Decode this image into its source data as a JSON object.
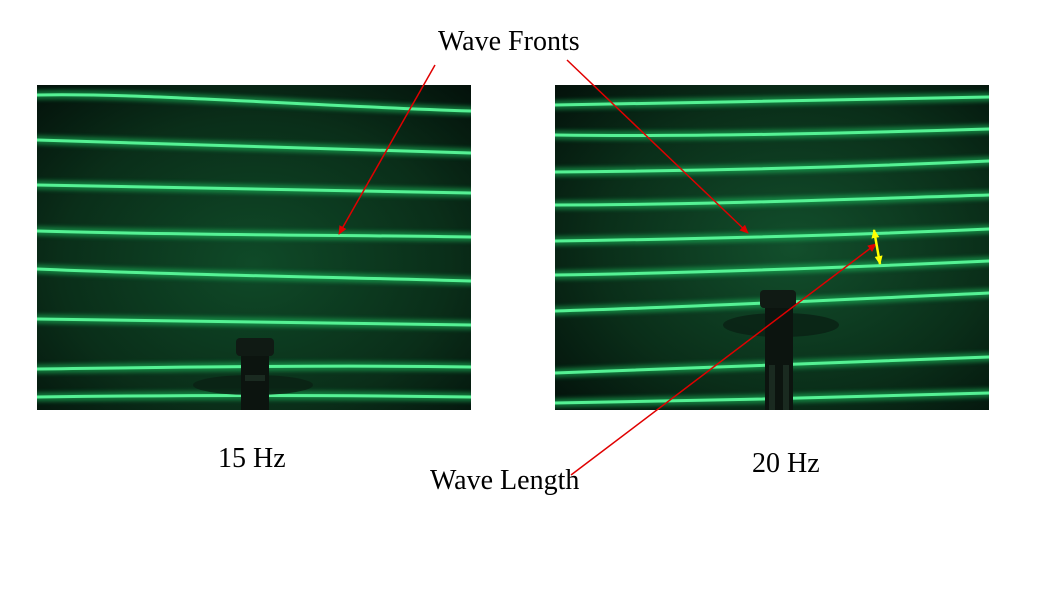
{
  "labels": {
    "wave_fronts": "Wave Fronts",
    "wave_length": "Wave Length"
  },
  "captions": {
    "left": "15 Hz",
    "right": "20 Hz"
  },
  "colors": {
    "background": "#ffffff",
    "photo_background": "#05140c",
    "wave_line": "#5dff9e",
    "wave_glow": "#1fbf5e",
    "pointer_arrow": "#e00000",
    "wavelength_marker": "#ffff00"
  },
  "icons": {
    "vibrator": "vibrator-probe"
  }
}
